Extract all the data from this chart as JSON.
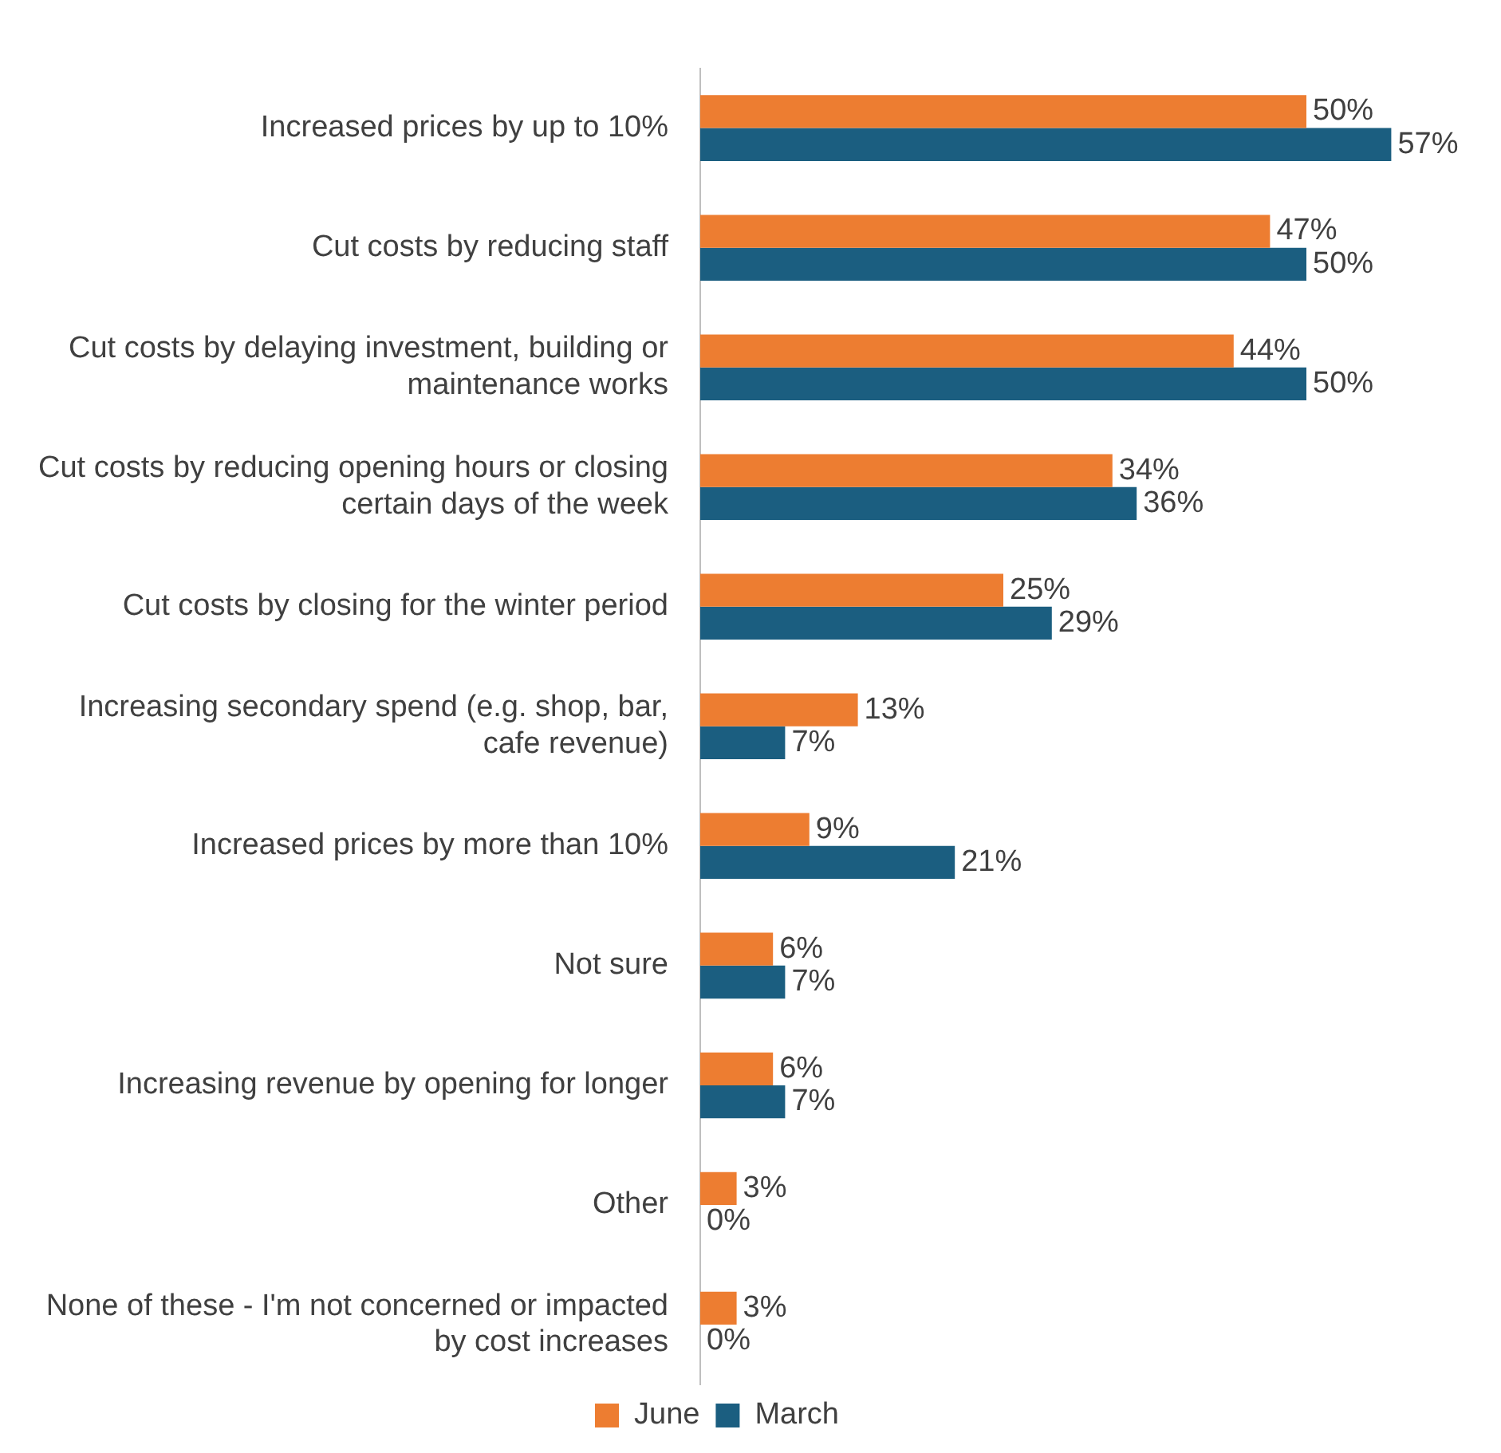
{
  "chart_data": {
    "type": "bar",
    "orientation": "horizontal",
    "categories": [
      "Increased prices by up to 10%",
      "Cut costs by reducing staff",
      "Cut costs by delaying investment, building or maintenance works",
      "Cut costs by reducing opening hours or closing certain days of the week",
      "Cut costs by closing for the winter period",
      "Increasing secondary spend (e.g. shop, bar, cafe revenue)",
      "Increased prices by more than 10%",
      "Not sure",
      "Increasing revenue by opening for longer",
      "Other",
      "None of these - I'm not concerned or impacted by cost increases"
    ],
    "series": [
      {
        "name": "June",
        "color": "#ed7d31",
        "values": [
          50,
          47,
          44,
          34,
          25,
          13,
          9,
          6,
          6,
          3,
          3
        ],
        "value_labels": [
          "50%",
          "47%",
          "44%",
          "34%",
          "25%",
          "13%",
          "9%",
          "6%",
          "6%",
          "3%",
          "3%"
        ]
      },
      {
        "name": "March",
        "color": "#1b5e80",
        "values": [
          57,
          50,
          50,
          36,
          29,
          7,
          21,
          7,
          7,
          0,
          0
        ],
        "value_labels": [
          "57%",
          "50%",
          "50%",
          "36%",
          "29%",
          "7%",
          "21%",
          "7%",
          "7%",
          "0%",
          "0%"
        ]
      }
    ],
    "legend": "bottom",
    "grid": false,
    "tick_labels": "y"
  }
}
